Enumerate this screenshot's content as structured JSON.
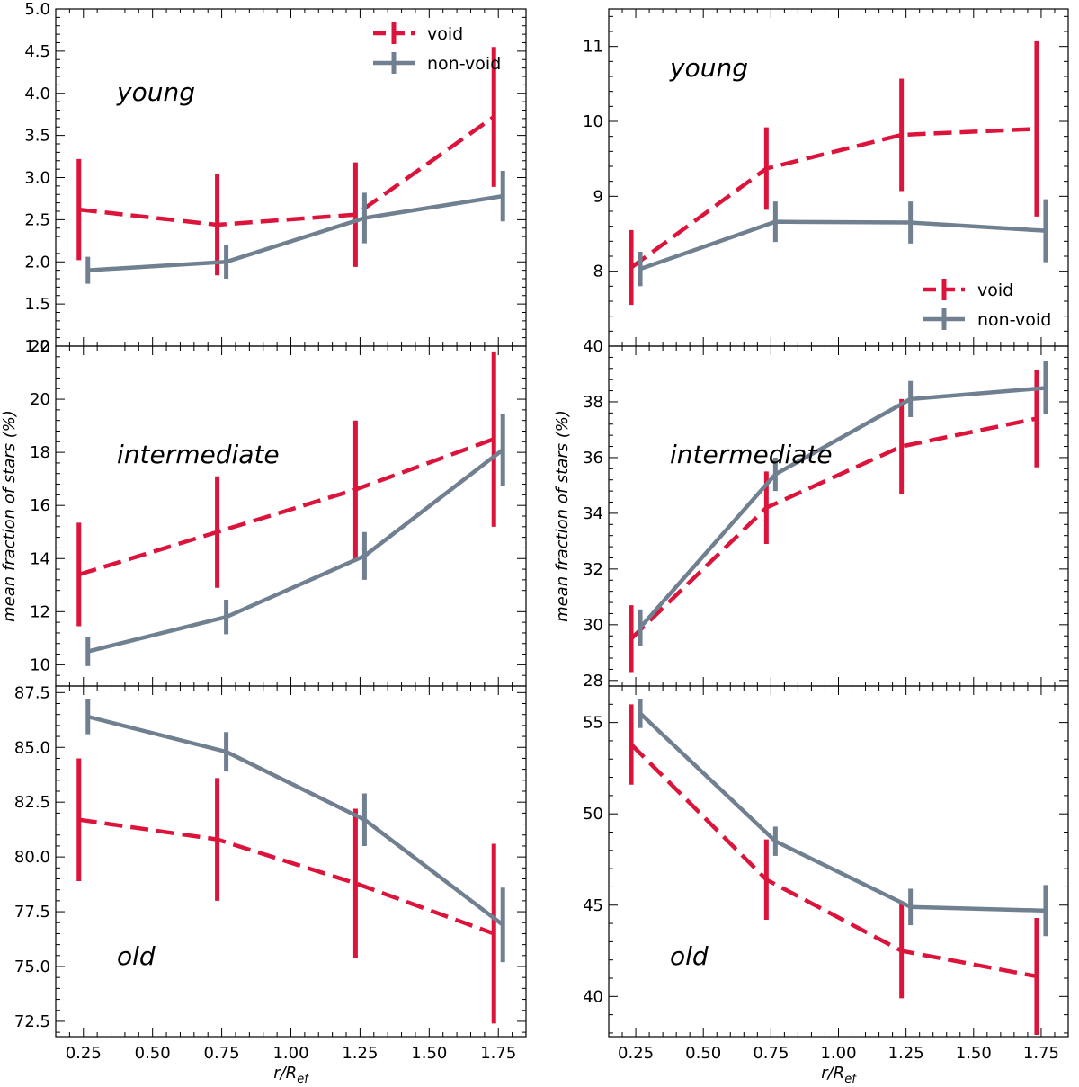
{
  "colors": {
    "void": "#dc143c",
    "non_void": "#708090"
  },
  "legend": {
    "void": "void",
    "non_void": "non-void"
  },
  "chart_data": [
    {
      "type": "line",
      "column": "left",
      "row": 0,
      "panel_label": "young",
      "x": [
        0.25,
        0.75,
        1.25,
        1.75
      ],
      "xlim": [
        0.15,
        1.85
      ],
      "xticks": [
        "0.25",
        "0.50",
        "0.75",
        "1.00",
        "1.25",
        "1.50",
        "1.75"
      ],
      "ylim": [
        1.0,
        5.0
      ],
      "yticks": [
        "1.0",
        "1.5",
        "2.0",
        "2.5",
        "3.0",
        "3.5",
        "4.0",
        "4.5",
        "5.0"
      ],
      "ylabel": "",
      "xlabel": "",
      "legend_position": "top-right",
      "series": [
        {
          "name": "void",
          "values": [
            2.62,
            2.44,
            2.56,
            3.72
          ],
          "errors": [
            0.6,
            0.6,
            0.62,
            0.83
          ]
        },
        {
          "name": "non-void",
          "values": [
            1.9,
            2.0,
            2.52,
            2.78
          ],
          "errors": [
            0.16,
            0.2,
            0.3,
            0.3
          ]
        }
      ]
    },
    {
      "type": "line",
      "column": "left",
      "row": 1,
      "panel_label": "intermediate",
      "x": [
        0.25,
        0.75,
        1.25,
        1.75
      ],
      "xlim": [
        0.15,
        1.85
      ],
      "xticks": [
        "0.25",
        "0.50",
        "0.75",
        "1.00",
        "1.25",
        "1.50",
        "1.75"
      ],
      "ylim": [
        9.2,
        22
      ],
      "yticks": [
        "10",
        "12",
        "14",
        "16",
        "18",
        "20",
        "22"
      ],
      "ylabel": "mean fraction of stars (%)",
      "xlabel": "",
      "series": [
        {
          "name": "void",
          "values": [
            13.4,
            15.0,
            16.6,
            18.5
          ],
          "errors": [
            1.95,
            2.1,
            2.6,
            3.3
          ]
        },
        {
          "name": "non-void",
          "values": [
            10.5,
            11.8,
            14.1,
            18.1
          ],
          "errors": [
            0.55,
            0.65,
            0.9,
            1.35
          ]
        }
      ]
    },
    {
      "type": "line",
      "column": "left",
      "row": 2,
      "panel_label": "old",
      "x": [
        0.25,
        0.75,
        1.25,
        1.75
      ],
      "xlim": [
        0.15,
        1.85
      ],
      "xticks": [
        "0.25",
        "0.50",
        "0.75",
        "1.00",
        "1.25",
        "1.50",
        "1.75"
      ],
      "ylim": [
        71.8,
        87.8
      ],
      "yticks": [
        "72.5",
        "75.0",
        "77.5",
        "80.0",
        "82.5",
        "85.0",
        "87.5"
      ],
      "ylabel": "",
      "xlabel": "r/R_ef",
      "series": [
        {
          "name": "void",
          "values": [
            81.7,
            80.8,
            78.8,
            76.5
          ],
          "errors": [
            2.8,
            2.8,
            3.4,
            4.1
          ]
        },
        {
          "name": "non-void",
          "values": [
            86.4,
            84.8,
            81.7,
            76.9
          ],
          "errors": [
            0.8,
            0.9,
            1.2,
            1.7
          ]
        }
      ]
    },
    {
      "type": "line",
      "column": "right",
      "row": 0,
      "panel_label": "young",
      "x": [
        0.25,
        0.75,
        1.25,
        1.75
      ],
      "xlim": [
        0.15,
        1.85
      ],
      "xticks": [
        "0.25",
        "0.50",
        "0.75",
        "1.00",
        "1.25",
        "1.50",
        "1.75"
      ],
      "ylim": [
        7.0,
        11.5
      ],
      "yticks": [
        "8",
        "9",
        "10",
        "11"
      ],
      "ylabel": "",
      "xlabel": "",
      "legend_position": "lower-right",
      "series": [
        {
          "name": "void",
          "values": [
            8.05,
            9.37,
            9.82,
            9.9
          ],
          "errors": [
            0.5,
            0.55,
            0.75,
            1.17
          ]
        },
        {
          "name": "non-void",
          "values": [
            8.03,
            8.66,
            8.65,
            8.54
          ],
          "errors": [
            0.23,
            0.27,
            0.28,
            0.42
          ]
        }
      ]
    },
    {
      "type": "line",
      "column": "right",
      "row": 1,
      "panel_label": "intermediate",
      "x": [
        0.25,
        0.75,
        1.25,
        1.75
      ],
      "xlim": [
        0.15,
        1.85
      ],
      "xticks": [
        "0.25",
        "0.50",
        "0.75",
        "1.00",
        "1.25",
        "1.50",
        "1.75"
      ],
      "ylim": [
        27.8,
        40
      ],
      "yticks": [
        "28",
        "30",
        "32",
        "34",
        "36",
        "38",
        "40"
      ],
      "ylabel": "mean fraction of stars (%)",
      "xlabel": "",
      "series": [
        {
          "name": "void",
          "values": [
            29.5,
            34.2,
            36.4,
            37.4
          ],
          "errors": [
            1.2,
            1.3,
            1.7,
            1.75
          ]
        },
        {
          "name": "non-void",
          "values": [
            29.9,
            35.4,
            38.1,
            38.5
          ],
          "errors": [
            0.65,
            0.6,
            0.65,
            0.95
          ]
        }
      ]
    },
    {
      "type": "line",
      "column": "right",
      "row": 2,
      "panel_label": "old",
      "x": [
        0.25,
        0.75,
        1.25,
        1.75
      ],
      "xlim": [
        0.15,
        1.85
      ],
      "xticks": [
        "0.25",
        "0.50",
        "0.75",
        "1.00",
        "1.25",
        "1.50",
        "1.75"
      ],
      "ylim": [
        37.8,
        57
      ],
      "yticks": [
        "40",
        "45",
        "50",
        "55"
      ],
      "ylabel": "",
      "xlabel": "r/R_ef",
      "series": [
        {
          "name": "void",
          "values": [
            53.8,
            46.4,
            42.5,
            41.1
          ],
          "errors": [
            2.2,
            2.2,
            2.6,
            3.2
          ]
        },
        {
          "name": "non-void",
          "values": [
            55.5,
            48.5,
            44.9,
            44.7
          ],
          "errors": [
            0.8,
            0.8,
            1.0,
            1.4
          ]
        }
      ]
    }
  ]
}
